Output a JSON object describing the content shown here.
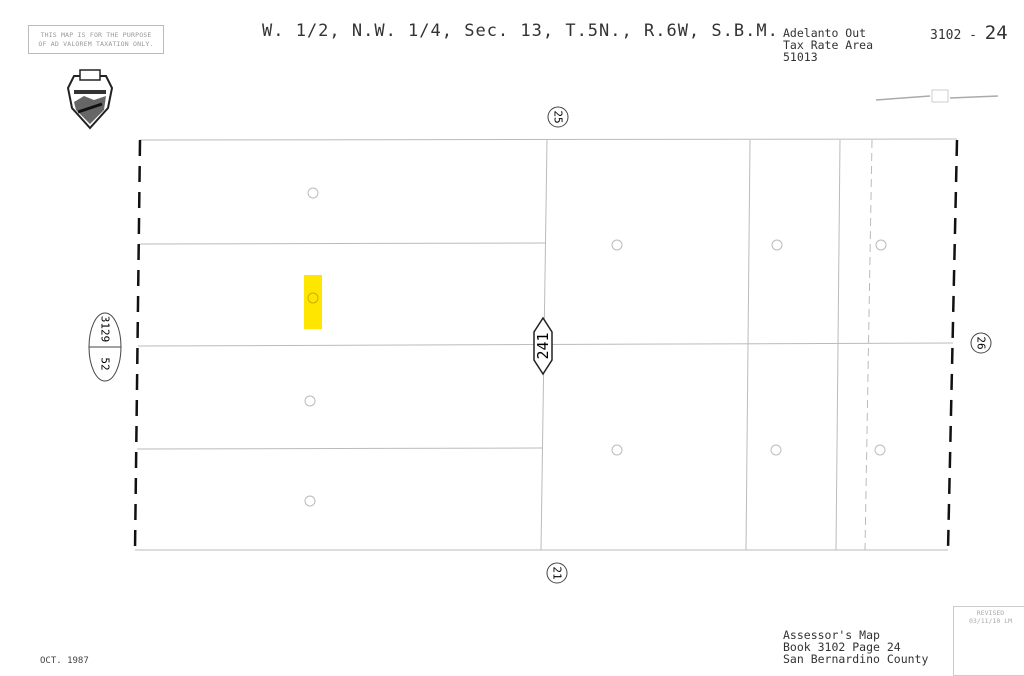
{
  "disclaimer": [
    "THIS MAP IS FOR THE PURPOSE",
    "OF AD VALOREM TAXATION ONLY."
  ],
  "title": "W. 1/2, N.W. 1/4, Sec. 13, T.5N., R.6W, S.B.M.",
  "tax_rate_area": [
    "Adelanto Out",
    "Tax Rate Area",
    "51013"
  ],
  "map_number": {
    "book": "3102 -",
    "page": "24"
  },
  "adjacent_maps": {
    "top": "25",
    "right": "26",
    "bottom": "21",
    "left_book": "3129",
    "left_page": "52"
  },
  "book_page_label": "241",
  "footer": [
    "Assessor's Map",
    "Book 3102 Page 24",
    "San Bernardino County"
  ],
  "date": "OCT. 1987",
  "revised": {
    "label": "REVISED",
    "value": "03/11/10 LM"
  },
  "highlight_color": "#ffe600",
  "seal_icon": "san-bernardino-county-seal"
}
